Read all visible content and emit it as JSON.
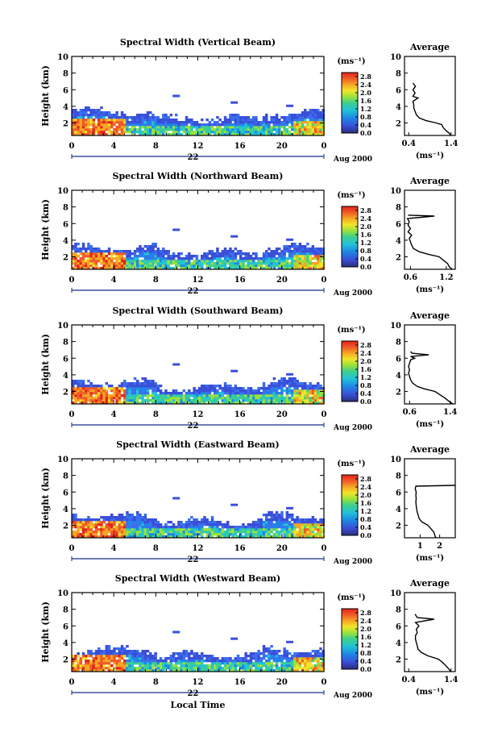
{
  "chart_data": [
    {
      "type": "heatmap",
      "title": "Spectral Width (Vertical Beam)",
      "ylabel": "Height (km)",
      "x_ticks": [
        "0",
        "4",
        "8",
        "12",
        "16",
        "20",
        "0"
      ],
      "y_ticks": [
        "2",
        "4",
        "6",
        "8",
        "10"
      ],
      "xlim": [
        0,
        24
      ],
      "ylim": [
        0.5,
        10
      ],
      "day_label": "22",
      "date_label": "Aug 2000",
      "colorbar": {
        "unit": "(ms⁻¹)",
        "ticks": [
          "0.0",
          "0.4",
          "0.8",
          "1.2",
          "1.6",
          "2.0",
          "2.4",
          "2.8"
        ],
        "range": [
          0,
          3.0
        ]
      },
      "average": {
        "title": "Average",
        "xlabel": "(ms⁻¹)",
        "x_ticks": [
          "0.4",
          "1.4"
        ],
        "xlim": [
          0.3,
          1.5
        ],
        "y_ticks": [
          "2",
          "4",
          "6",
          "8",
          "10"
        ],
        "ylim": [
          0.5,
          10
        ],
        "profile": [
          [
            0.5,
            1.4
          ],
          [
            0.8,
            1.35
          ],
          [
            1.0,
            1.3
          ],
          [
            1.4,
            1.22
          ],
          [
            1.8,
            1.18
          ],
          [
            2.0,
            1.05
          ],
          [
            2.3,
            0.8
          ],
          [
            2.6,
            0.65
          ],
          [
            3.0,
            0.58
          ],
          [
            3.4,
            0.55
          ],
          [
            3.8,
            0.52
          ],
          [
            4.2,
            0.52
          ],
          [
            4.6,
            0.5
          ],
          [
            5.0,
            0.62
          ],
          [
            5.2,
            0.5
          ],
          [
            5.6,
            0.55
          ],
          [
            6.0,
            0.5
          ],
          [
            6.4,
            0.56
          ],
          [
            6.8,
            0.5
          ]
        ]
      }
    },
    {
      "type": "heatmap",
      "title": "Spectral Width (Northward Beam)",
      "ylabel": "Height (km)",
      "x_ticks": [
        "0",
        "4",
        "8",
        "12",
        "16",
        "20",
        "0"
      ],
      "y_ticks": [
        "2",
        "4",
        "6",
        "8",
        "10"
      ],
      "xlim": [
        0,
        24
      ],
      "ylim": [
        0.5,
        10
      ],
      "day_label": "22",
      "date_label": "Aug 2000",
      "colorbar": {
        "unit": "(ms⁻¹)",
        "ticks": [
          "0.0",
          "0.4",
          "0.8",
          "1.2",
          "1.6",
          "2.0",
          "2.4",
          "2.8"
        ],
        "range": [
          0,
          3.0
        ]
      },
      "average": {
        "title": "Average",
        "xlabel": "(ms⁻¹)",
        "x_ticks": [
          "0.6",
          "1.2"
        ],
        "xlim": [
          0.5,
          1.35
        ],
        "y_ticks": [
          "2",
          "4",
          "6",
          "8",
          "10"
        ],
        "ylim": [
          0.5,
          10
        ],
        "profile": [
          [
            0.5,
            1.3
          ],
          [
            0.8,
            1.25
          ],
          [
            1.2,
            1.22
          ],
          [
            1.6,
            1.15
          ],
          [
            2.0,
            1.08
          ],
          [
            2.3,
            0.9
          ],
          [
            2.6,
            0.75
          ],
          [
            3.0,
            0.65
          ],
          [
            3.4,
            0.62
          ],
          [
            3.8,
            0.6
          ],
          [
            4.2,
            0.58
          ],
          [
            4.6,
            0.62
          ],
          [
            5.0,
            0.56
          ],
          [
            5.4,
            0.6
          ],
          [
            5.8,
            0.56
          ],
          [
            6.2,
            0.58
          ],
          [
            6.6,
            0.55
          ],
          [
            6.9,
            1.0
          ],
          [
            7.0,
            0.56
          ]
        ]
      }
    },
    {
      "type": "heatmap",
      "title": "Spectral Width (Southward Beam)",
      "ylabel": "Height (km)",
      "x_ticks": [
        "0",
        "4",
        "8",
        "12",
        "16",
        "20",
        "0"
      ],
      "y_ticks": [
        "2",
        "4",
        "6",
        "8",
        "10"
      ],
      "xlim": [
        0,
        24
      ],
      "ylim": [
        0.5,
        10
      ],
      "day_label": "22",
      "date_label": "Aug 2000",
      "colorbar": {
        "unit": "(ms⁻¹)",
        "ticks": [
          "0.0",
          "0.4",
          "0.8",
          "1.2",
          "1.6",
          "2.0",
          "2.4",
          "2.8"
        ],
        "range": [
          0,
          3.0
        ]
      },
      "average": {
        "title": "Average",
        "xlabel": "(ms⁻¹)",
        "x_ticks": [
          "0.6",
          "1.4"
        ],
        "xlim": [
          0.5,
          1.5
        ],
        "y_ticks": [
          "2",
          "4",
          "6",
          "8",
          "10"
        ],
        "ylim": [
          0.5,
          10
        ],
        "profile": [
          [
            0.5,
            1.45
          ],
          [
            0.8,
            1.38
          ],
          [
            1.2,
            1.3
          ],
          [
            1.6,
            1.2
          ],
          [
            2.0,
            1.1
          ],
          [
            2.3,
            0.9
          ],
          [
            2.6,
            0.75
          ],
          [
            3.0,
            0.66
          ],
          [
            3.4,
            0.62
          ],
          [
            3.8,
            0.6
          ],
          [
            4.2,
            0.58
          ],
          [
            4.6,
            0.6
          ],
          [
            5.0,
            0.58
          ],
          [
            5.4,
            0.6
          ],
          [
            5.8,
            0.62
          ],
          [
            6.0,
            0.7
          ],
          [
            6.2,
            0.62
          ],
          [
            6.4,
            0.98
          ],
          [
            6.6,
            0.65
          ],
          [
            6.8,
            0.62
          ]
        ]
      }
    },
    {
      "type": "heatmap",
      "title": "Spectral Width (Eastward Beam)",
      "ylabel": "Height (km)",
      "x_ticks": [
        "0",
        "4",
        "8",
        "12",
        "16",
        "20",
        "0"
      ],
      "y_ticks": [
        "2",
        "4",
        "6",
        "8",
        "10"
      ],
      "xlim": [
        0,
        24
      ],
      "ylim": [
        0.5,
        10
      ],
      "day_label": "22",
      "date_label": "Aug 2000",
      "colorbar": {
        "unit": "(ms⁻¹)",
        "ticks": [
          "0.0",
          "0.4",
          "0.8",
          "1.2",
          "1.6",
          "2.0",
          "2.4",
          "2.8"
        ],
        "range": [
          0,
          3.0
        ]
      },
      "average": {
        "title": "Average",
        "xlabel": "(ms⁻¹)",
        "x_ticks": [
          "1",
          "2"
        ],
        "xlim": [
          0.2,
          2.8
        ],
        "y_ticks": [
          "2",
          "4",
          "6",
          "8",
          "10"
        ],
        "ylim": [
          0.5,
          10
        ],
        "profile": [
          [
            0.5,
            1.8
          ],
          [
            0.8,
            1.75
          ],
          [
            1.2,
            1.7
          ],
          [
            1.6,
            1.55
          ],
          [
            2.0,
            1.4
          ],
          [
            2.4,
            1.1
          ],
          [
            2.8,
            0.95
          ],
          [
            3.2,
            0.9
          ],
          [
            3.6,
            0.85
          ],
          [
            4.0,
            0.82
          ],
          [
            4.4,
            0.8
          ],
          [
            4.8,
            0.78
          ],
          [
            5.2,
            0.8
          ],
          [
            5.6,
            0.78
          ],
          [
            6.0,
            0.8
          ],
          [
            6.4,
            0.75
          ],
          [
            6.7,
            0.78
          ],
          [
            6.8,
            2.8
          ]
        ]
      }
    },
    {
      "type": "heatmap",
      "title": "Spectral Width (Westward Beam)",
      "ylabel": "Height (km)",
      "xlabel": "Local Time",
      "x_ticks": [
        "0",
        "4",
        "8",
        "12",
        "16",
        "20",
        "0"
      ],
      "y_ticks": [
        "2",
        "4",
        "6",
        "8",
        "10"
      ],
      "xlim": [
        0,
        24
      ],
      "ylim": [
        0.5,
        10
      ],
      "day_label": "22",
      "date_label": "Aug 2000",
      "colorbar": {
        "unit": "(ms⁻¹)",
        "ticks": [
          "0.0",
          "0.4",
          "0.8",
          "1.2",
          "1.6",
          "2.0",
          "2.4",
          "2.8"
        ],
        "range": [
          0,
          3.0
        ]
      },
      "average": {
        "title": "Average",
        "xlabel": "(ms⁻¹)",
        "x_ticks": [
          "0.4",
          "1.4"
        ],
        "xlim": [
          0.3,
          1.5
        ],
        "y_ticks": [
          "2",
          "4",
          "6",
          "8",
          "10"
        ],
        "ylim": [
          0.5,
          10
        ],
        "profile": [
          [
            0.5,
            1.4
          ],
          [
            0.8,
            1.35
          ],
          [
            1.2,
            1.28
          ],
          [
            1.6,
            1.2
          ],
          [
            2.0,
            1.1
          ],
          [
            2.4,
            0.85
          ],
          [
            2.8,
            0.7
          ],
          [
            3.2,
            0.62
          ],
          [
            3.6,
            0.6
          ],
          [
            4.0,
            0.58
          ],
          [
            4.4,
            0.56
          ],
          [
            4.8,
            0.56
          ],
          [
            5.2,
            0.6
          ],
          [
            5.6,
            0.58
          ],
          [
            6.0,
            0.64
          ],
          [
            6.4,
            0.56
          ],
          [
            6.8,
            1.0
          ],
          [
            7.0,
            0.6
          ],
          [
            7.4,
            0.55
          ]
        ]
      }
    }
  ]
}
